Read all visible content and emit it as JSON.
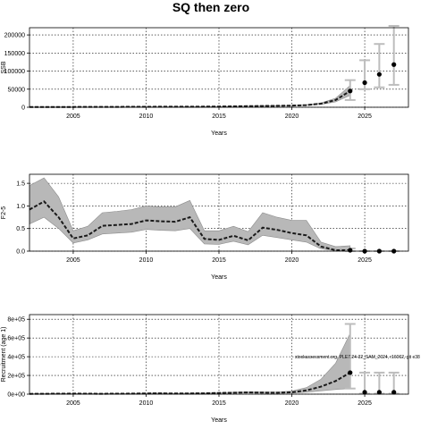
{
  "figure": {
    "title": "SQ then zero",
    "annotation": "stockassessment.org, PLE7.24-32_SAM_2024, r16062, git e38"
  },
  "chart_data": [
    {
      "type": "line",
      "ylabel": "SSB",
      "xlabel": "Years",
      "xlim": [
        2002,
        2028
      ],
      "ylim": [
        0,
        220000
      ],
      "xticks": [
        2005,
        2010,
        2015,
        2020,
        2025
      ],
      "yticks": [
        0,
        50000,
        100000,
        150000,
        200000
      ],
      "ytick_labels": [
        "0",
        "50000",
        "100000",
        "150000",
        "200000"
      ],
      "grid": true,
      "x": [
        2002,
        2003,
        2004,
        2005,
        2006,
        2007,
        2008,
        2009,
        2010,
        2011,
        2012,
        2013,
        2014,
        2015,
        2016,
        2017,
        2018,
        2019,
        2020,
        2021,
        2022,
        2023,
        2024
      ],
      "estimate": [
        500,
        600,
        700,
        800,
        900,
        1000,
        1100,
        1200,
        1300,
        1400,
        1500,
        1600,
        1800,
        2000,
        2500,
        3000,
        3500,
        4000,
        4500,
        6000,
        10000,
        20000,
        45000
      ],
      "lower": [
        400,
        500,
        600,
        700,
        800,
        900,
        1000,
        1100,
        1200,
        1300,
        1400,
        1500,
        1600,
        1800,
        2200,
        2600,
        3000,
        3400,
        3800,
        5000,
        8000,
        15000,
        33000
      ],
      "upper": [
        700,
        800,
        900,
        1000,
        1100,
        1200,
        1300,
        1400,
        1500,
        1600,
        1700,
        1800,
        2000,
        2300,
        2900,
        3500,
        4100,
        4700,
        5300,
        7000,
        12000,
        25000,
        60000
      ],
      "forecast": [
        {
          "year": 2024,
          "median": 45000,
          "low": 20000,
          "high": 75000
        },
        {
          "year": 2025,
          "median": 68000,
          "low": 50000,
          "high": 130000
        },
        {
          "year": 2026,
          "median": 91000,
          "low": 55000,
          "high": 175000
        },
        {
          "year": 2027,
          "median": 118000,
          "low": 62000,
          "high": 225000
        }
      ]
    },
    {
      "type": "line",
      "ylabel": "F2-5",
      "xlabel": "Years",
      "xlim": [
        2002,
        2028
      ],
      "ylim": [
        0,
        1.7
      ],
      "xticks": [
        2005,
        2010,
        2015,
        2020,
        2025
      ],
      "yticks": [
        0.0,
        0.5,
        1.0,
        1.5
      ],
      "ytick_labels": [
        "0.0",
        "0.5",
        "1.0",
        "1.5"
      ],
      "grid": true,
      "x": [
        2002,
        2003,
        2004,
        2005,
        2006,
        2007,
        2008,
        2009,
        2010,
        2011,
        2012,
        2013,
        2014,
        2015,
        2016,
        2017,
        2018,
        2019,
        2020,
        2021,
        2022,
        2023,
        2024
      ],
      "estimate": [
        0.92,
        1.1,
        0.75,
        0.28,
        0.35,
        0.56,
        0.58,
        0.6,
        0.68,
        0.66,
        0.65,
        0.75,
        0.27,
        0.25,
        0.34,
        0.24,
        0.52,
        0.47,
        0.4,
        0.35,
        0.1,
        0.02,
        0.02
      ],
      "lower": [
        0.6,
        0.75,
        0.5,
        0.18,
        0.25,
        0.38,
        0.4,
        0.42,
        0.48,
        0.46,
        0.45,
        0.5,
        0.16,
        0.15,
        0.22,
        0.14,
        0.35,
        0.3,
        0.25,
        0.2,
        0.05,
        0.01,
        0.01
      ],
      "upper": [
        1.45,
        1.62,
        1.2,
        0.45,
        0.55,
        0.85,
        0.88,
        0.92,
        1.0,
        0.98,
        0.98,
        1.12,
        0.45,
        0.45,
        0.55,
        0.43,
        0.85,
        0.75,
        0.68,
        0.68,
        0.2,
        0.1,
        0.12
      ],
      "forecast": [
        {
          "year": 2024,
          "median": 0.02,
          "low": 0.0,
          "high": 0.06
        },
        {
          "year": 2025,
          "median": 0.0,
          "low": 0.0,
          "high": 0.0
        },
        {
          "year": 2026,
          "median": 0.0,
          "low": 0.0,
          "high": 0.0
        },
        {
          "year": 2027,
          "median": 0.0,
          "low": 0.0,
          "high": 0.0
        }
      ]
    },
    {
      "type": "line",
      "ylabel": "Recruitment (age 1)",
      "xlabel": "Years",
      "xlim": [
        2002,
        2028
      ],
      "ylim": [
        0,
        850000
      ],
      "xticks": [
        2005,
        2010,
        2015,
        2020,
        2025
      ],
      "yticks": [
        0,
        200000,
        400000,
        600000,
        800000
      ],
      "ytick_labels": [
        "0e+00",
        "2e+05",
        "4e+05",
        "6e+05",
        "8e+05"
      ],
      "grid": true,
      "x": [
        2002,
        2003,
        2004,
        2005,
        2006,
        2007,
        2008,
        2009,
        2010,
        2011,
        2012,
        2013,
        2014,
        2015,
        2016,
        2017,
        2018,
        2019,
        2020,
        2021,
        2022,
        2023,
        2024
      ],
      "estimate": [
        3000,
        4000,
        5000,
        6000,
        5000,
        4000,
        5000,
        6000,
        8000,
        9000,
        7000,
        8000,
        9000,
        12000,
        15000,
        18000,
        16000,
        15000,
        20000,
        40000,
        80000,
        140000,
        230000
      ],
      "lower": [
        2000,
        3000,
        4000,
        4500,
        3800,
        3000,
        3800,
        4500,
        6000,
        7000,
        5500,
        6000,
        7000,
        9000,
        11000,
        13000,
        11000,
        10000,
        12000,
        20000,
        35000,
        50000,
        60000
      ],
      "upper": [
        4500,
        5500,
        6500,
        8000,
        6500,
        5500,
        6500,
        8000,
        11000,
        12000,
        9500,
        11000,
        12000,
        16000,
        21000,
        25000,
        23000,
        22000,
        32000,
        70000,
        160000,
        330000,
        650000
      ],
      "forecast": [
        {
          "year": 2024,
          "median": 230000,
          "low": 60000,
          "high": 750000
        },
        {
          "year": 2025,
          "median": 20000,
          "low": 5000,
          "high": 230000
        },
        {
          "year": 2026,
          "median": 20000,
          "low": 5000,
          "high": 230000
        },
        {
          "year": 2027,
          "median": 20000,
          "low": 5000,
          "high": 230000
        }
      ]
    }
  ]
}
